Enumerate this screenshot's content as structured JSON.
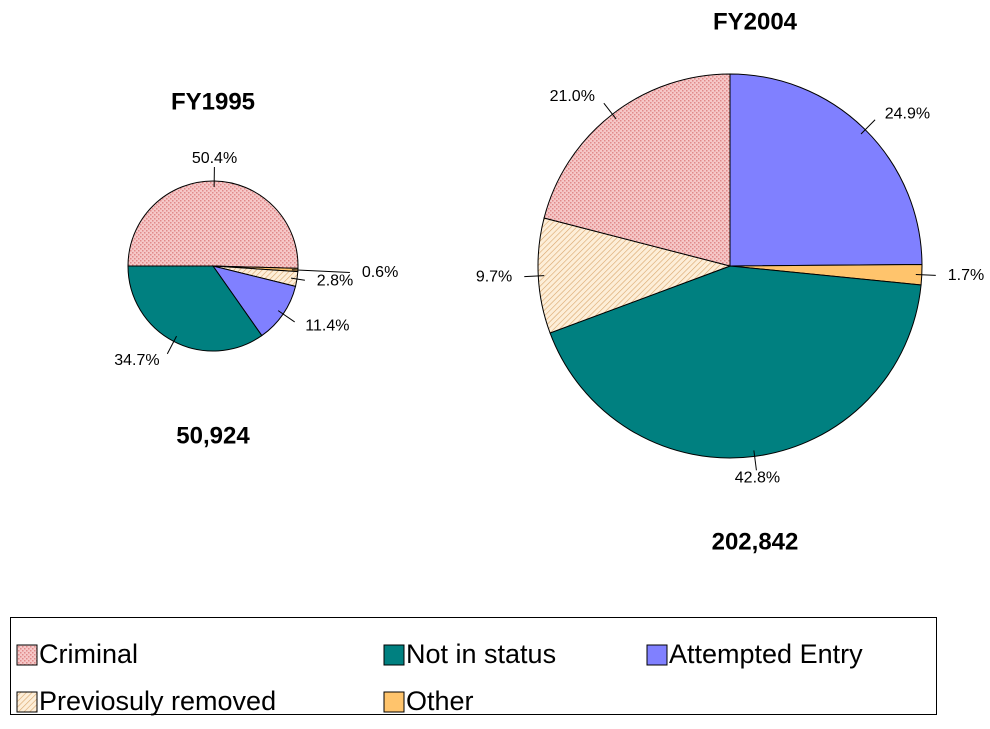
{
  "chart_data": [
    {
      "type": "pie",
      "title": "FY1995",
      "total_label": "50,924",
      "start_angle": 270,
      "categories": [
        "Criminal",
        "Other",
        "Previosuly removed",
        "Attempted Entry",
        "Not in status"
      ],
      "values": [
        50.4,
        0.6,
        2.8,
        11.4,
        34.7
      ],
      "value_labels": [
        "50.4%",
        "0.6%",
        "2.8%",
        "11.4%",
        "34.7%"
      ]
    },
    {
      "type": "pie",
      "title": "FY2004",
      "total_label": "202,842",
      "start_angle": 0,
      "categories": [
        "Attempted Entry",
        "Other",
        "Not in status",
        "Previosuly removed",
        "Criminal"
      ],
      "values": [
        24.9,
        1.7,
        42.8,
        9.7,
        21.0
      ],
      "value_labels": [
        "24.9%",
        "1.7%",
        "42.8%",
        "9.7%",
        "21.0%"
      ]
    }
  ],
  "legend": [
    {
      "name": "Criminal",
      "color": "#f6c8c8"
    },
    {
      "name": "Not in status",
      "color": "#008080"
    },
    {
      "name": "Attempted Entry",
      "color": "#8080ff"
    },
    {
      "name": "Previosuly removed",
      "color": "#fde6c8"
    },
    {
      "name": "Other",
      "color": "#ffc46c"
    }
  ]
}
